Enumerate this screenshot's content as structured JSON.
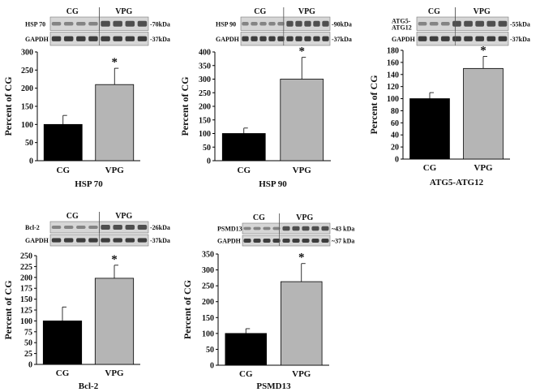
{
  "chart_data": [
    {
      "type": "bar",
      "title": "HSP 70",
      "ylabel": "Percent of CG",
      "categories": [
        "CG",
        "VPG"
      ],
      "values": [
        100,
        210
      ],
      "errors": [
        25,
        45
      ],
      "ylim": [
        0,
        300
      ],
      "yticks": [
        "0",
        "50",
        "100",
        "150",
        "200",
        "250",
        "300"
      ],
      "significance": [
        "",
        "*"
      ],
      "colors": [
        "#000000",
        "#b5b5b5"
      ],
      "blot": {
        "headers": [
          "CG",
          "VPG"
        ],
        "rows": [
          {
            "label": "HSP 70",
            "kda": "-70kDa"
          },
          {
            "label": "GAPDH",
            "kda": "-37kDa"
          }
        ]
      }
    },
    {
      "type": "bar",
      "title": "HSP 90",
      "ylabel": "Percent of CG",
      "categories": [
        "CG",
        "VPG"
      ],
      "values": [
        100,
        300
      ],
      "errors": [
        20,
        80
      ],
      "ylim": [
        0,
        400
      ],
      "yticks": [
        "0",
        "50",
        "100",
        "150",
        "200",
        "250",
        "300",
        "350",
        "400"
      ],
      "significance": [
        "",
        "*"
      ],
      "colors": [
        "#000000",
        "#b5b5b5"
      ],
      "blot": {
        "headers": [
          "CG",
          "VPG"
        ],
        "rows": [
          {
            "label": "HSP 90",
            "kda": "-90kDa"
          },
          {
            "label": "GAPDH",
            "kda": "-37kDa"
          }
        ]
      }
    },
    {
      "type": "bar",
      "title": "ATG5-ATG12",
      "ylabel": "Percent of CG",
      "categories": [
        "CG",
        "VPG"
      ],
      "values": [
        100,
        150
      ],
      "errors": [
        10,
        20
      ],
      "ylim": [
        0,
        180
      ],
      "yticks": [
        "0",
        "20",
        "40",
        "60",
        "80",
        "100",
        "120",
        "140",
        "160",
        "180"
      ],
      "significance": [
        "",
        "*"
      ],
      "colors": [
        "#000000",
        "#b5b5b5"
      ],
      "blot": {
        "headers": [
          "CG",
          "VPG"
        ],
        "rows": [
          {
            "label": "ATG5-\nATG12",
            "kda": "-55kDa"
          },
          {
            "label": "GAPDH",
            "kda": "-37kDa"
          }
        ]
      }
    },
    {
      "type": "bar",
      "title": "Bcl-2",
      "ylabel": "Percent of CG",
      "categories": [
        "CG",
        "VPG"
      ],
      "values": [
        100,
        198
      ],
      "errors": [
        32,
        30
      ],
      "ylim": [
        0,
        250
      ],
      "yticks": [
        "0",
        "25",
        "50",
        "75",
        "100",
        "125",
        "150",
        "175",
        "200",
        "225",
        "250"
      ],
      "significance": [
        "",
        "*"
      ],
      "colors": [
        "#000000",
        "#b5b5b5"
      ],
      "blot": {
        "headers": [
          "CG",
          "VPG"
        ],
        "rows": [
          {
            "label": "Bcl-2",
            "kda": "-26kDa"
          },
          {
            "label": "GAPDH",
            "kda": "-37kDa"
          }
        ]
      }
    },
    {
      "type": "bar",
      "title": "PSMD13",
      "ylabel": "Percent of CG",
      "categories": [
        "CG",
        "VPG"
      ],
      "values": [
        100,
        263
      ],
      "errors": [
        15,
        57
      ],
      "ylim": [
        0,
        350
      ],
      "yticks": [
        "0",
        "50",
        "100",
        "150",
        "200",
        "250",
        "300",
        "350"
      ],
      "significance": [
        "",
        "*"
      ],
      "colors": [
        "#000000",
        "#b5b5b5"
      ],
      "blot": {
        "headers": [
          "CG",
          "VPG"
        ],
        "rows": [
          {
            "label": "PSMD13",
            "kda": "~43 kDa"
          },
          {
            "label": "GAPDH",
            "kda": "~37 kDa"
          }
        ]
      }
    }
  ]
}
